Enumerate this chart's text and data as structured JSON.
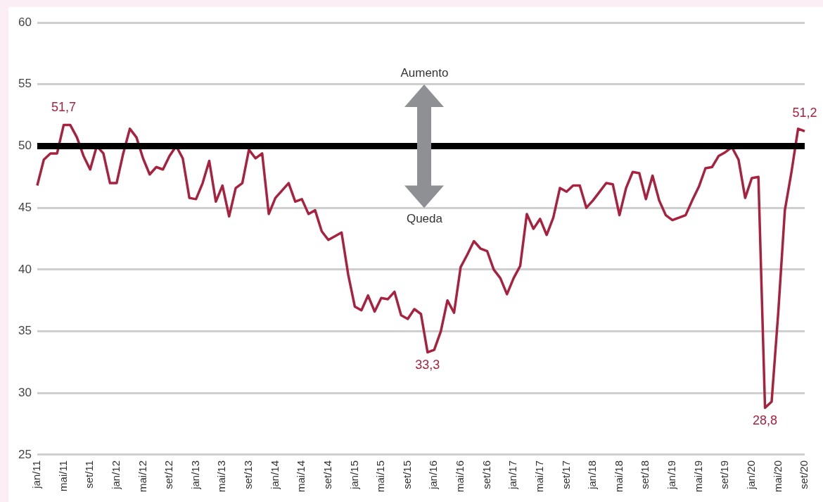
{
  "chart_data": {
    "type": "line",
    "categories": [
      "jan/11",
      null,
      null,
      null,
      "mai/11",
      null,
      null,
      null,
      "set/11",
      null,
      null,
      null,
      "jan/12",
      null,
      null,
      null,
      "mai/12",
      null,
      null,
      null,
      "set/12",
      null,
      null,
      null,
      "jan/13",
      null,
      null,
      null,
      "mai/13",
      null,
      null,
      null,
      "set/13",
      null,
      null,
      null,
      "jan/14",
      null,
      null,
      null,
      "mai/14",
      null,
      null,
      null,
      "set/14",
      null,
      null,
      null,
      "jan/15",
      null,
      null,
      null,
      "mai/15",
      null,
      null,
      null,
      "set/15",
      null,
      null,
      null,
      "jan/16",
      null,
      null,
      null,
      "mai/16",
      null,
      null,
      null,
      "set/16",
      null,
      null,
      null,
      "jan/17",
      null,
      null,
      null,
      "mai/17",
      null,
      null,
      null,
      "set/17",
      null,
      null,
      null,
      "jan/18",
      null,
      null,
      null,
      "mai/18",
      null,
      null,
      null,
      "set/18",
      null,
      null,
      null,
      "jan/19",
      null,
      null,
      null,
      "mai/19",
      null,
      null,
      null,
      "set/19",
      null,
      null,
      null,
      "jan/20",
      null,
      null,
      null,
      "mai/20",
      null,
      null,
      null,
      "set/20"
    ],
    "series": [
      {
        "color": "#a8223f",
        "values": [
          46.8,
          48.9,
          49.4,
          49.4,
          51.7,
          51.7,
          50.7,
          49.2,
          48.1,
          50.0,
          49.4,
          47.0,
          47.0,
          49.4,
          51.4,
          50.7,
          49.0,
          47.7,
          48.3,
          48.1,
          49.2,
          50.0,
          49.0,
          45.8,
          45.7,
          47.0,
          48.8,
          45.5,
          46.8,
          44.3,
          46.6,
          47.0,
          49.7,
          49.0,
          49.4,
          44.5,
          45.8,
          46.4,
          47.0,
          45.5,
          45.7,
          44.5,
          44.8,
          43.1,
          42.4,
          42.7,
          43.0,
          39.6,
          37.0,
          36.7,
          37.9,
          36.6,
          37.7,
          37.6,
          38.2,
          36.3,
          36.0,
          36.8,
          36.4,
          33.3,
          33.5,
          35.0,
          37.5,
          36.5,
          40.2,
          41.2,
          42.3,
          41.7,
          41.5,
          40.0,
          39.3,
          38.0,
          39.3,
          40.3,
          44.5,
          43.3,
          44.1,
          42.8,
          44.2,
          46.6,
          46.3,
          46.8,
          46.8,
          45.0,
          45.6,
          46.3,
          47.0,
          46.9,
          44.4,
          46.6,
          47.9,
          47.8,
          45.7,
          47.6,
          45.6,
          44.4,
          44.0,
          44.2,
          44.4,
          45.6,
          46.7,
          48.2,
          48.3,
          49.2,
          49.5,
          49.9,
          48.9,
          45.8,
          47.4,
          47.5,
          28.8,
          29.3,
          36.5,
          44.8,
          47.9,
          51.4,
          51.2
        ],
        "value_labels": [
          null,
          null,
          null,
          null,
          "51,7",
          null,
          null,
          null,
          null,
          null,
          null,
          null,
          null,
          null,
          null,
          null,
          null,
          null,
          null,
          null,
          null,
          null,
          null,
          null,
          null,
          null,
          null,
          null,
          null,
          null,
          null,
          null,
          null,
          null,
          null,
          null,
          null,
          null,
          null,
          null,
          null,
          null,
          null,
          null,
          null,
          null,
          null,
          null,
          null,
          null,
          null,
          null,
          null,
          null,
          null,
          null,
          null,
          null,
          null,
          "33,3",
          null,
          null,
          null,
          null,
          null,
          null,
          null,
          null,
          null,
          null,
          null,
          null,
          null,
          null,
          null,
          null,
          null,
          null,
          null,
          null,
          null,
          null,
          null,
          null,
          null,
          null,
          null,
          null,
          null,
          null,
          null,
          null,
          null,
          null,
          null,
          null,
          null,
          null,
          null,
          null,
          null,
          null,
          null,
          null,
          null,
          null,
          null,
          null,
          null,
          null,
          "28,8",
          null,
          null,
          null,
          null,
          null,
          "51,2"
        ]
      }
    ],
    "ylim": [
      25,
      60
    ],
    "yticks": [
      25,
      30,
      35,
      40,
      45,
      50,
      55,
      60
    ],
    "grid": "y",
    "legend": false,
    "marker": "none",
    "line_style": "solid",
    "ref_lines": [
      {
        "axis": "y",
        "value": 50,
        "color": "#000000"
      }
    ],
    "annotations": [
      "Aumento",
      "Queda"
    ]
  }
}
